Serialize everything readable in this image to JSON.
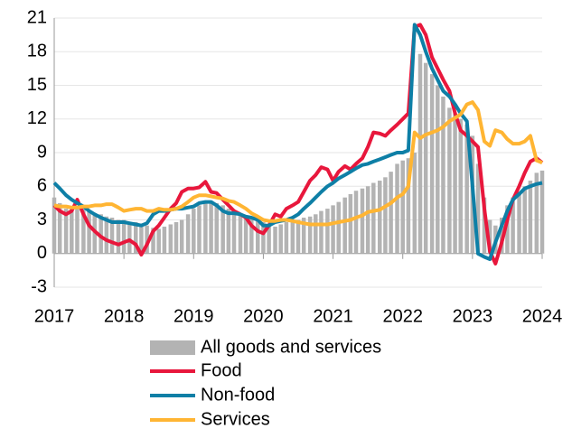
{
  "chart_data": {
    "type": "bar",
    "x": [
      2017.0,
      2017.08,
      2017.17,
      2017.25,
      2017.33,
      2017.42,
      2017.5,
      2017.58,
      2017.67,
      2017.75,
      2017.83,
      2017.92,
      2018.0,
      2018.08,
      2018.17,
      2018.25,
      2018.33,
      2018.42,
      2018.5,
      2018.58,
      2018.67,
      2018.75,
      2018.83,
      2018.92,
      2019.0,
      2019.08,
      2019.17,
      2019.25,
      2019.33,
      2019.42,
      2019.5,
      2019.58,
      2019.67,
      2019.75,
      2019.83,
      2019.92,
      2020.0,
      2020.08,
      2020.17,
      2020.25,
      2020.33,
      2020.42,
      2020.5,
      2020.58,
      2020.67,
      2020.75,
      2020.83,
      2020.92,
      2021.0,
      2021.08,
      2021.17,
      2021.25,
      2021.33,
      2021.42,
      2021.5,
      2021.58,
      2021.67,
      2021.75,
      2021.83,
      2021.92,
      2022.0,
      2022.08,
      2022.17,
      2022.25,
      2022.33,
      2022.42,
      2022.5,
      2022.58,
      2022.67,
      2022.75,
      2022.83,
      2022.92,
      2023.0,
      2023.08,
      2023.17,
      2023.25,
      2023.33,
      2023.42,
      2023.5,
      2023.58,
      2023.67,
      2023.75,
      2023.83,
      2023.92,
      2024.0
    ],
    "series": [
      {
        "name": "All goods and services",
        "type": "bar",
        "color": "#b3b3b3",
        "values": [
          5,
          4.5,
          4,
          4,
          4,
          4,
          3.8,
          3.5,
          3.5,
          3.3,
          3.2,
          3,
          3,
          2.8,
          2.8,
          2.5,
          2.5,
          2.3,
          2.2,
          2.4,
          2.6,
          2.8,
          3,
          3.5,
          4,
          4.3,
          4.5,
          4.5,
          4.5,
          4.3,
          4,
          3.8,
          3.6,
          3.4,
          3.2,
          3,
          2.8,
          2.6,
          2.4,
          2.6,
          2.8,
          3,
          3,
          3.2,
          3.3,
          3.5,
          3.8,
          4,
          4.3,
          4.6,
          5,
          5.3,
          5.6,
          5.8,
          6,
          6.3,
          6.5,
          6.8,
          7.3,
          8,
          8.3,
          8.5,
          9,
          17.8,
          17,
          16,
          15,
          14,
          13,
          12.5,
          12,
          11.5,
          10.5,
          8,
          5,
          3,
          2.5,
          3.2,
          4.3,
          5,
          5.5,
          6,
          6.5,
          7.2,
          7.4
        ]
      },
      {
        "name": "Food",
        "type": "line",
        "color": "#e8173c",
        "values": [
          4.3,
          3.8,
          3.5,
          3.8,
          4.8,
          3.5,
          2.5,
          2,
          1.5,
          1.2,
          1,
          0.8,
          1,
          1.2,
          0.8,
          -0.1,
          0.8,
          2,
          2.5,
          3.2,
          4,
          4.5,
          5.5,
          5.8,
          5.8,
          5.9,
          6.4,
          5.5,
          5.4,
          4.8,
          4.3,
          3.8,
          3.5,
          3.2,
          2.5,
          2,
          1.8,
          2.5,
          3.5,
          3.3,
          4,
          4.3,
          4.6,
          5.5,
          6.5,
          7,
          7.7,
          7.5,
          6.5,
          7.3,
          7.8,
          7.5,
          8,
          8.5,
          9.5,
          10.8,
          10.7,
          10.5,
          11,
          11.5,
          12,
          12.5,
          20.2,
          20.4,
          19.5,
          17.5,
          16.5,
          15.5,
          14.5,
          12.5,
          11,
          10.5,
          10,
          9.5,
          4,
          0.2,
          -0.9,
          1,
          3,
          4.8,
          6,
          7.2,
          8.2,
          8.5,
          8.1
        ]
      },
      {
        "name": "Non-food",
        "type": "line",
        "color": "#0e7fa6",
        "values": [
          6.3,
          5.8,
          5.2,
          4.8,
          4.5,
          4.2,
          3.8,
          3.5,
          3.2,
          3,
          2.8,
          2.8,
          2.8,
          2.7,
          2.6,
          2.5,
          2.7,
          3.5,
          3.8,
          3.8,
          3.9,
          4,
          4,
          4.1,
          4.2,
          4.5,
          4.6,
          4.6,
          4.3,
          3.8,
          3.6,
          3.6,
          3.5,
          3.3,
          3.2,
          3,
          2.5,
          2.5,
          2.8,
          2.9,
          3,
          3.2,
          3.5,
          4,
          4.5,
          5,
          5.5,
          6,
          6.3,
          6.7,
          7,
          7.3,
          7.6,
          7.9,
          8,
          8.2,
          8.4,
          8.6,
          8.8,
          9,
          9,
          9.2,
          20.4,
          19.5,
          18,
          16.5,
          15.5,
          14.5,
          14,
          13.3,
          12.5,
          11.8,
          6,
          0,
          -0.3,
          -0.5,
          1,
          2.5,
          3.8,
          4.8,
          5.3,
          5.8,
          6,
          6.2,
          6.3
        ]
      },
      {
        "name": "Services",
        "type": "line",
        "color": "#ffb533",
        "values": [
          4.3,
          4.2,
          4.2,
          4.1,
          4.1,
          4.2,
          4.2,
          4.3,
          4.3,
          4.4,
          4.4,
          4.1,
          3.8,
          3.9,
          4,
          4,
          3.8,
          3.8,
          4,
          3.9,
          3.9,
          4,
          4.2,
          4.6,
          5,
          5.2,
          5.2,
          5.1,
          5,
          4.9,
          4.7,
          4.6,
          4.3,
          4,
          3.6,
          3.3,
          3,
          2.9,
          2.9,
          3,
          3,
          2.9,
          2.8,
          2.7,
          2.6,
          2.6,
          2.6,
          2.6,
          2.7,
          2.8,
          2.9,
          3,
          3.2,
          3.4,
          3.7,
          3.8,
          3.9,
          4.2,
          4.5,
          5,
          5.3,
          6,
          10.8,
          10.3,
          10.6,
          10.8,
          11,
          11.3,
          11.8,
          12.1,
          12.4,
          13.3,
          13.5,
          12.8,
          10,
          9.6,
          11,
          10.8,
          10.2,
          9.8,
          9.8,
          10,
          10.5,
          8.3,
          8.1
        ]
      }
    ],
    "xlim": [
      2017,
      2024
    ],
    "xticks": [
      2017,
      2018,
      2019,
      2020,
      2021,
      2022,
      2023,
      2024
    ],
    "ylim": [
      -3,
      21
    ],
    "yticks": [
      -3,
      0,
      3,
      6,
      9,
      12,
      15,
      18,
      21
    ],
    "grid": true,
    "legend": "bottom"
  }
}
